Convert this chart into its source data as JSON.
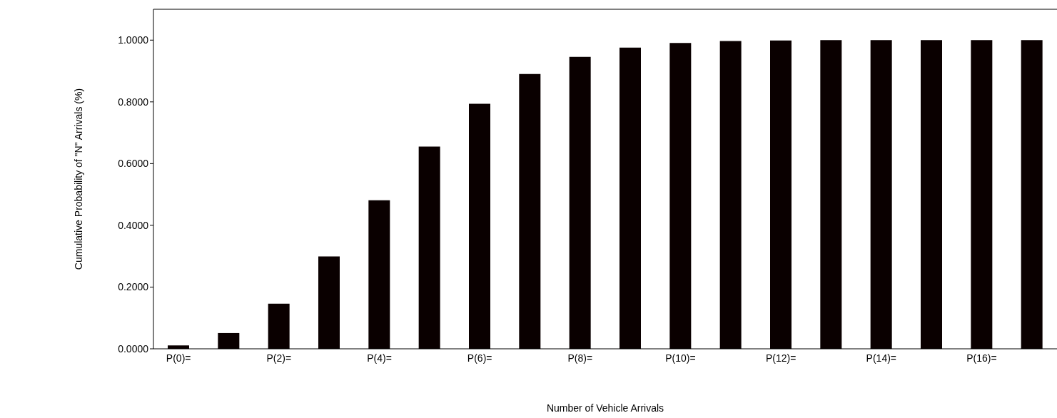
{
  "chart_data": {
    "type": "bar",
    "xlabel": "Number of Vehicle Arrivals",
    "ylabel": "Cumulative Probability of \"N\" Arrivals (%)",
    "categories": [
      "P(0)=",
      null,
      "P(2)=",
      null,
      "P(4)=",
      null,
      "P(6)=",
      null,
      "P(8)=",
      null,
      "P(10)=",
      null,
      "P(12)=",
      null,
      "P(14)=",
      null,
      "P(16)=",
      null
    ],
    "values": [
      0.011,
      0.051,
      0.146,
      0.299,
      0.481,
      0.655,
      0.794,
      0.89,
      0.946,
      0.976,
      0.991,
      0.997,
      0.999,
      1.0,
      1.0,
      1.0,
      1.0,
      1.0
    ],
    "color": "#0a0000",
    "ylim": [
      0,
      1.1
    ],
    "yticks": [
      {
        "value": 0,
        "label": "0.0000"
      },
      {
        "value": 0.2,
        "label": "0.2000"
      },
      {
        "value": 0.4,
        "label": "0.4000"
      },
      {
        "value": 0.6,
        "label": "0.6000"
      },
      {
        "value": 0.8,
        "label": "0.8000"
      },
      {
        "value": 1,
        "label": "1.0000"
      }
    ],
    "grid": false,
    "legend": false
  }
}
